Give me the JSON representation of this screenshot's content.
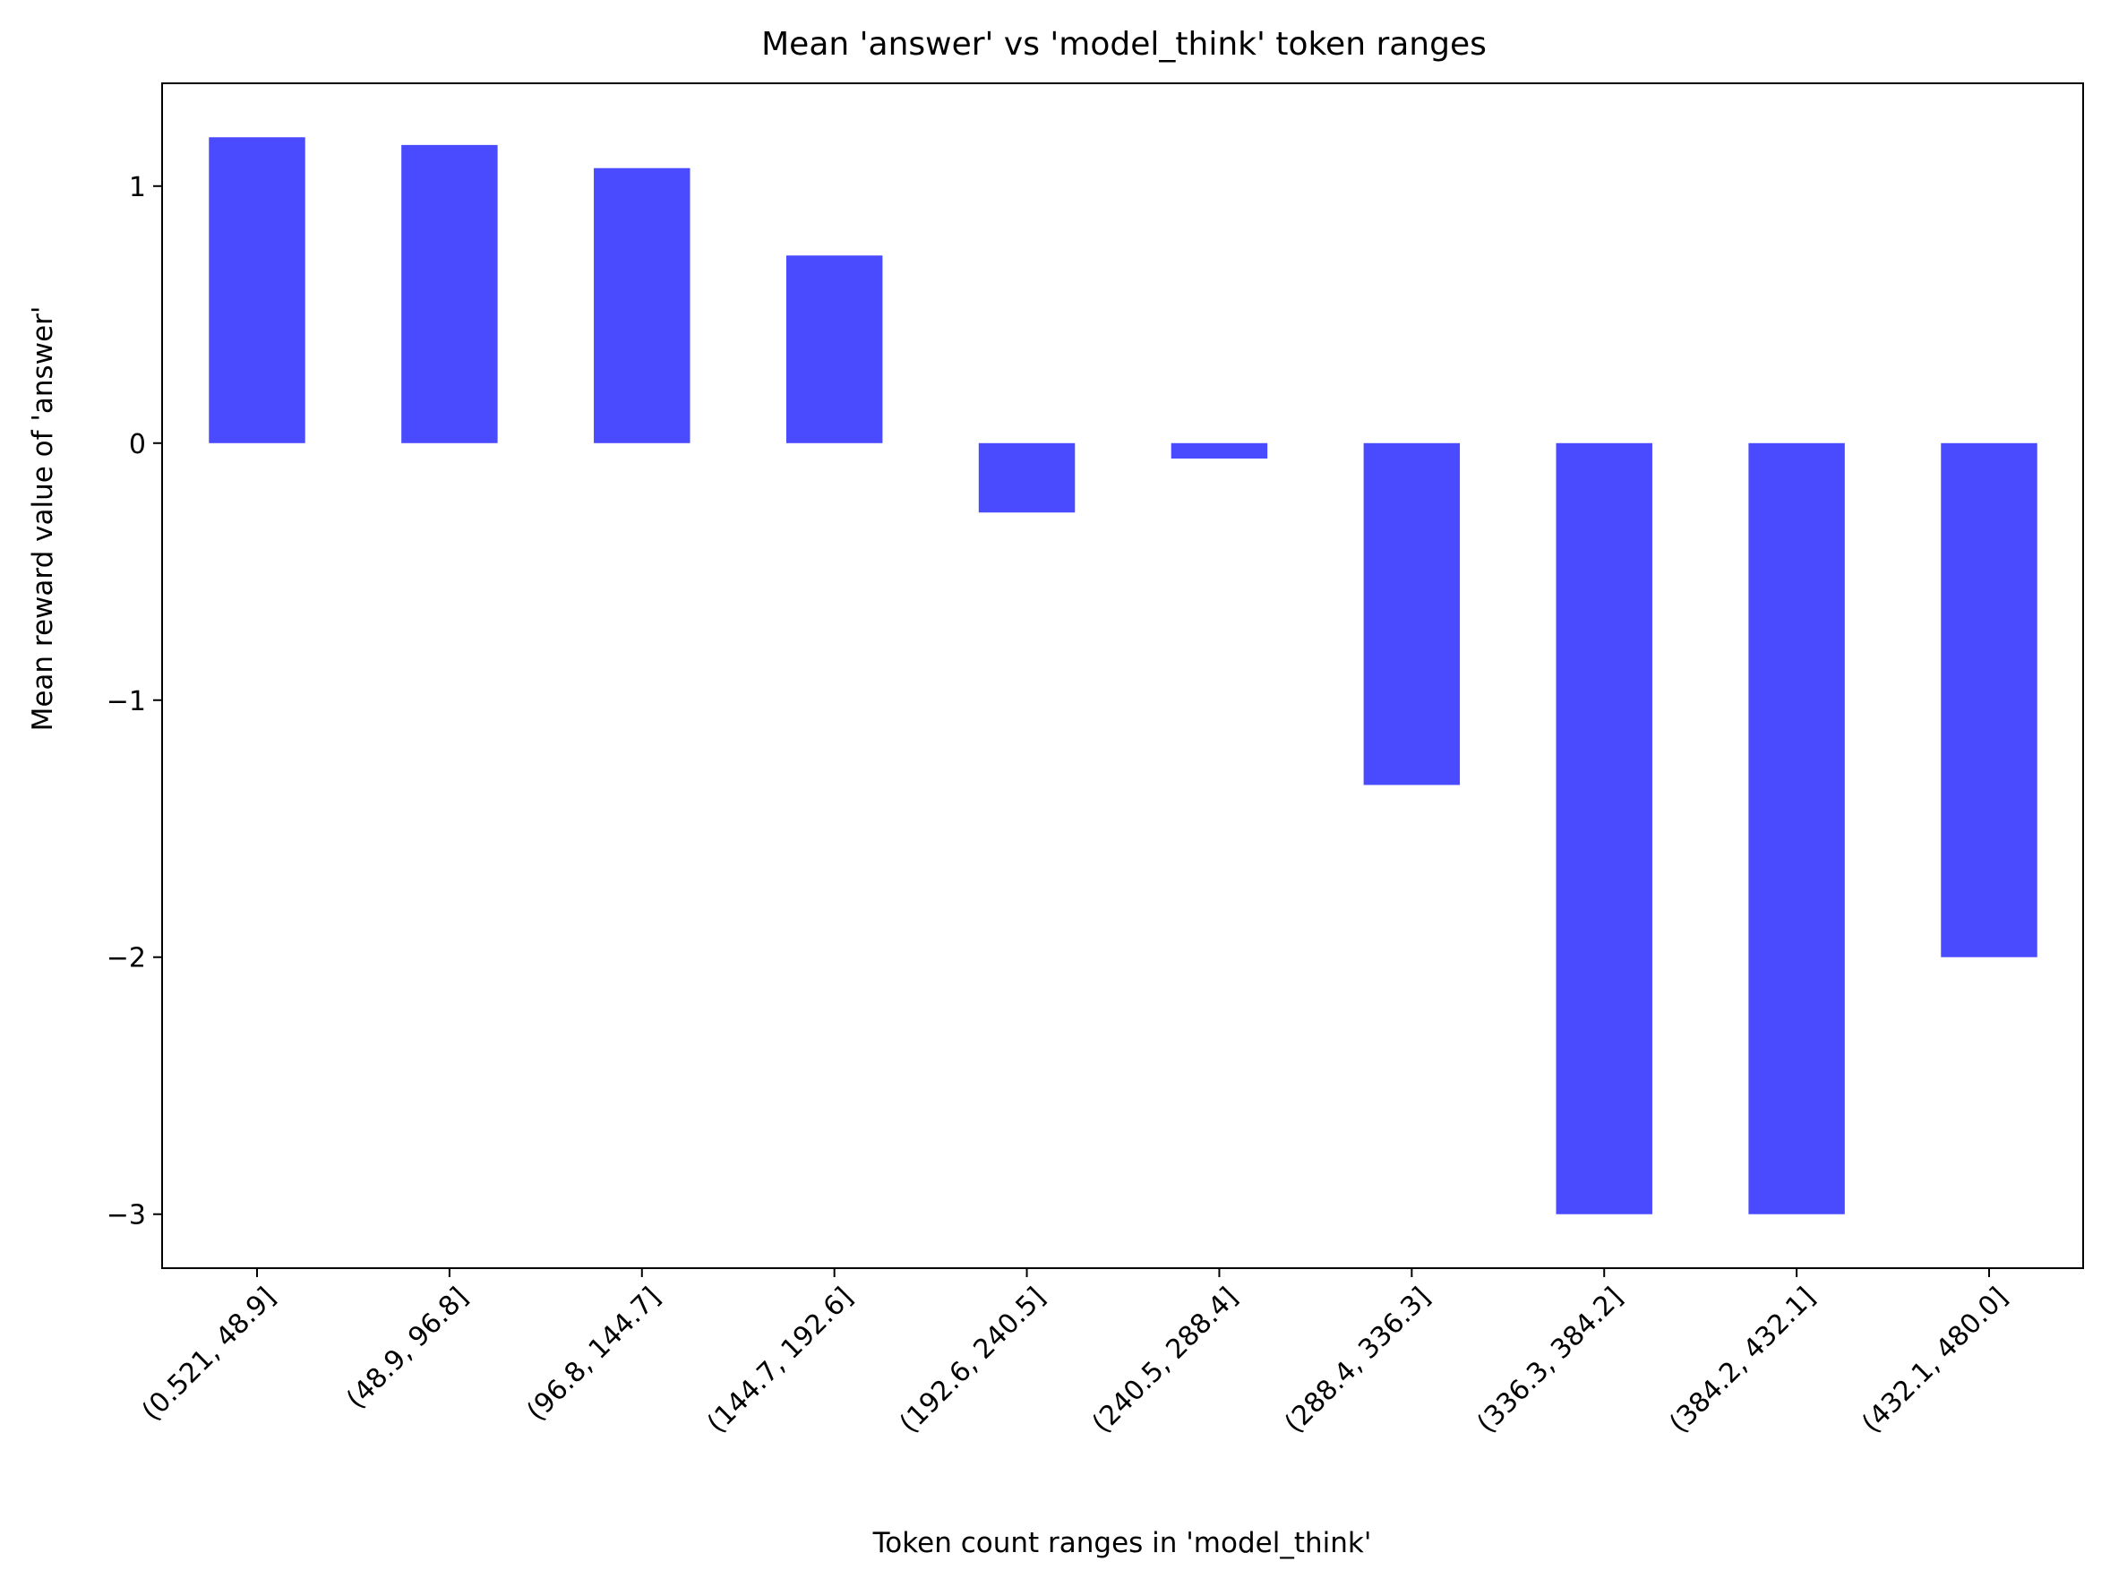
{
  "chart_data": {
    "type": "bar",
    "title": "Mean 'answer' vs 'model_think' token ranges",
    "xlabel": "Token count ranges in 'model_think'",
    "ylabel": "Mean reward value of 'answer'",
    "categories": [
      "(0.521, 48.9]",
      "(48.9, 96.8]",
      "(96.8, 144.7]",
      "(144.7, 192.6]",
      "(192.6, 240.5]",
      "(240.5, 288.4]",
      "(288.4, 336.3]",
      "(336.3, 384.2]",
      "(384.2, 432.1]",
      "(432.1, 480.0]"
    ],
    "values": [
      1.19,
      1.16,
      1.07,
      0.73,
      -0.27,
      -0.06,
      -1.33,
      -3.0,
      -3.0,
      -2.0
    ],
    "ylim": [
      -3.21,
      1.4
    ],
    "yticks": [
      1,
      0,
      -1,
      -2,
      -3
    ],
    "ytick_labels": [
      "1",
      "0",
      "−1",
      "−2",
      "−3"
    ],
    "bar_color": "#4a4aff",
    "grid": false,
    "legend": "none"
  }
}
